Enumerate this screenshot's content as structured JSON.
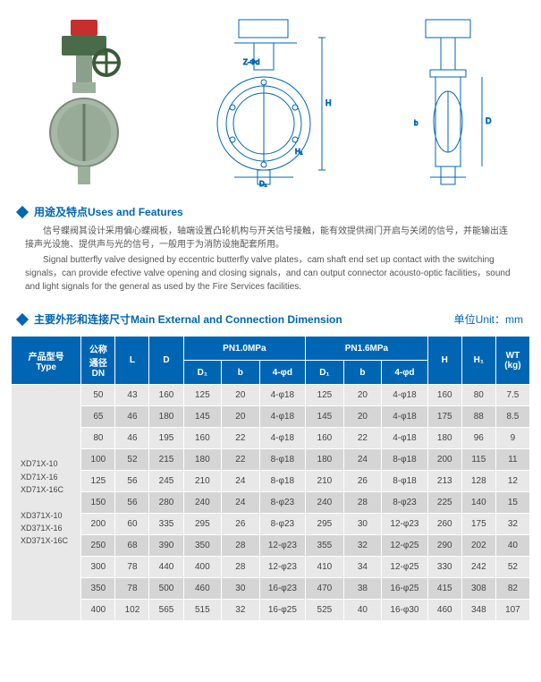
{
  "section1": {
    "title": "用途及特点Uses and Features",
    "para_cn": "信号蝶阀其设计采用偏心蝶阀板，轴端设置凸轮机构与开关信号接触，能有效提供阀门开启与关闭的信号，并能输出连接声光设施、提供声与光的信号，一般用于为消防设施配套所用。",
    "para_en": "Signal butterfly valve designed by eccentric butterfly valve plates，cam shaft end set up contact with the switching signals，can provide efective valve opening and closing signals，and can output connector acousto-optic facilities，sound and light signals for the general as used by the Fire Services facilities."
  },
  "section2": {
    "title": "主要外形和连接尺寸Main External and Connection Dimension",
    "unit": "单位Unit：mm"
  },
  "table": {
    "headers": {
      "type": "产品型号\nType",
      "dn": "公称\n通径\nDN",
      "l": "L",
      "d": "D",
      "pn10": "PN1.0MPa",
      "pn16": "PN1.6MPa",
      "d1": "D₁",
      "b": "b",
      "phi_d": "4-φd",
      "h": "H",
      "h1": "H₁",
      "wt": "WT\n(kg)"
    },
    "type_labels": [
      "XD71X-10",
      "XD71X-16",
      "XD71X-16C",
      "",
      "XD371X-10",
      "XD371X-16",
      "XD371X-16C"
    ],
    "rows": [
      {
        "dn": "50",
        "l": "43",
        "d": "160",
        "p10_d1": "125",
        "p10_b": "20",
        "p10_phi": "4-φ18",
        "p16_d1": "125",
        "p16_b": "20",
        "p16_phi": "4-φ18",
        "h": "160",
        "h1": "80",
        "wt": "7.5"
      },
      {
        "dn": "65",
        "l": "46",
        "d": "180",
        "p10_d1": "145",
        "p10_b": "20",
        "p10_phi": "4-φ18",
        "p16_d1": "145",
        "p16_b": "20",
        "p16_phi": "4-φ18",
        "h": "175",
        "h1": "88",
        "wt": "8.5"
      },
      {
        "dn": "80",
        "l": "46",
        "d": "195",
        "p10_d1": "160",
        "p10_b": "22",
        "p10_phi": "4-φ18",
        "p16_d1": "160",
        "p16_b": "22",
        "p16_phi": "4-φ18",
        "h": "180",
        "h1": "96",
        "wt": "9"
      },
      {
        "dn": "100",
        "l": "52",
        "d": "215",
        "p10_d1": "180",
        "p10_b": "22",
        "p10_phi": "8-φ18",
        "p16_d1": "180",
        "p16_b": "24",
        "p16_phi": "8-φ18",
        "h": "200",
        "h1": "115",
        "wt": "11"
      },
      {
        "dn": "125",
        "l": "56",
        "d": "245",
        "p10_d1": "210",
        "p10_b": "24",
        "p10_phi": "8-φ18",
        "p16_d1": "210",
        "p16_b": "26",
        "p16_phi": "8-φ18",
        "h": "213",
        "h1": "128",
        "wt": "12"
      },
      {
        "dn": "150",
        "l": "56",
        "d": "280",
        "p10_d1": "240",
        "p10_b": "24",
        "p10_phi": "8-φ23",
        "p16_d1": "240",
        "p16_b": "28",
        "p16_phi": "8-φ23",
        "h": "225",
        "h1": "140",
        "wt": "15"
      },
      {
        "dn": "200",
        "l": "60",
        "d": "335",
        "p10_d1": "295",
        "p10_b": "26",
        "p10_phi": "8-φ23",
        "p16_d1": "295",
        "p16_b": "30",
        "p16_phi": "12-φ23",
        "h": "260",
        "h1": "175",
        "wt": "32"
      },
      {
        "dn": "250",
        "l": "68",
        "d": "390",
        "p10_d1": "350",
        "p10_b": "28",
        "p10_phi": "12-φ23",
        "p16_d1": "355",
        "p16_b": "32",
        "p16_phi": "12-φ25",
        "h": "290",
        "h1": "202",
        "wt": "40"
      },
      {
        "dn": "300",
        "l": "78",
        "d": "440",
        "p10_d1": "400",
        "p10_b": "28",
        "p10_phi": "12-φ23",
        "p16_d1": "410",
        "p16_b": "34",
        "p16_phi": "12-φ25",
        "h": "330",
        "h1": "242",
        "wt": "52"
      },
      {
        "dn": "350",
        "l": "78",
        "d": "500",
        "p10_d1": "460",
        "p10_b": "30",
        "p10_phi": "16-φ23",
        "p16_d1": "470",
        "p16_b": "38",
        "p16_phi": "16-φ25",
        "h": "415",
        "h1": "308",
        "wt": "82"
      },
      {
        "dn": "400",
        "l": "102",
        "d": "565",
        "p10_d1": "515",
        "p10_b": "32",
        "p10_phi": "16-φ25",
        "p16_d1": "525",
        "p16_b": "40",
        "p16_phi": "16-φ30",
        "h": "460",
        "h1": "348",
        "wt": "107"
      }
    ]
  }
}
